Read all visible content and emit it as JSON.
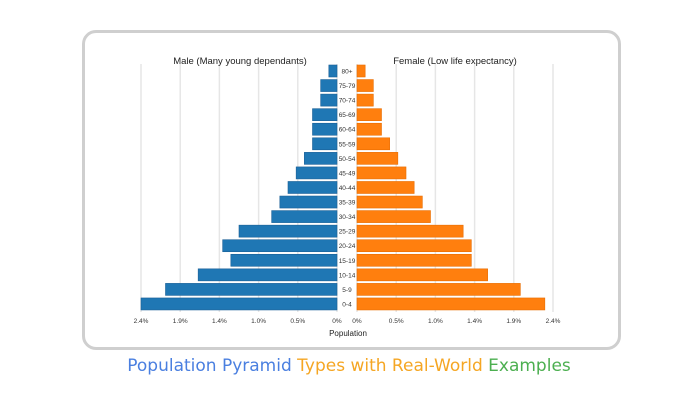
{
  "chart_data": {
    "type": "bar",
    "orientation": "horizontal-pyramid",
    "categories": [
      "80+",
      "75-79",
      "70-74",
      "65-69",
      "60-64",
      "55-59",
      "50-54",
      "45-49",
      "40-44",
      "35-39",
      "30-34",
      "25-29",
      "20-24",
      "15-19",
      "10-14",
      "5-9",
      "0-4"
    ],
    "series": [
      {
        "name": "Male (Many young dependants)",
        "color": "#1f77b4",
        "side": "left",
        "values": [
          0.1,
          0.2,
          0.2,
          0.3,
          0.3,
          0.3,
          0.4,
          0.5,
          0.6,
          0.7,
          0.8,
          1.2,
          1.4,
          1.3,
          1.7,
          2.1,
          2.4
        ]
      },
      {
        "name": "Female (Low life expectancy)",
        "color": "#ff7f0e",
        "side": "right",
        "values": [
          0.1,
          0.2,
          0.2,
          0.3,
          0.3,
          0.4,
          0.5,
          0.6,
          0.7,
          0.8,
          0.9,
          1.3,
          1.4,
          1.4,
          1.6,
          2.0,
          2.3
        ]
      }
    ],
    "xlabel": "Population",
    "x_ticks_left": [
      "2.4%",
      "1.9%",
      "1.4%",
      "1.0%",
      "0.5%",
      "0%"
    ],
    "x_ticks_right": [
      "0%",
      "0.5%",
      "1.0%",
      "1.4%",
      "1.9%",
      "2.4%"
    ],
    "xlim": [
      0,
      2.4
    ],
    "grid": "vertical"
  },
  "caption": {
    "part1": "Population Pyramid",
    "part2": "Types with Real-World",
    "part3": "Examples"
  },
  "colors": {
    "male": "#1f77b4",
    "female": "#ff7f0e",
    "caption_blue": "#4a7fe0",
    "caption_orange": "#f5a623",
    "caption_green": "#4caf50"
  }
}
